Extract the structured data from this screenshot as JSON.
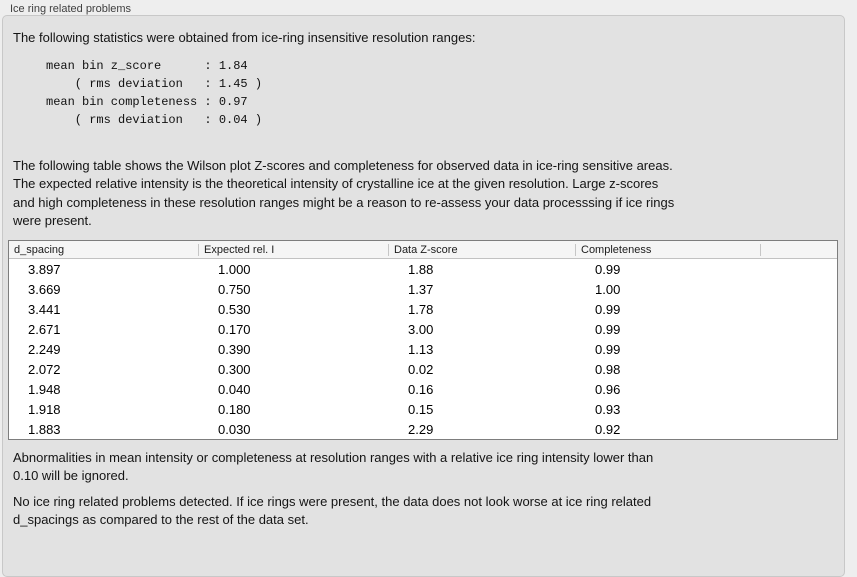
{
  "panel": {
    "title": "Ice ring related problems"
  },
  "intro": "The following statistics were obtained from ice-ring insensitive resolution ranges:",
  "stats_block": "mean bin z_score      : 1.84\n    ( rms deviation   : 1.45 )\nmean bin completeness : 0.97\n    ( rms deviation   : 0.04 )",
  "stats": {
    "mean_bin_z_score": "1.84",
    "z_score_rms_deviation": "1.45",
    "mean_bin_completeness": "0.97",
    "completeness_rms_deviation": "0.04"
  },
  "description": "The following table shows the Wilson plot Z-scores and completeness for observed data in ice-ring sensitive areas.\nThe expected relative intensity is the theoretical intensity of crystalline ice at the given resolution. Large z-scores\nand high completeness in these resolution ranges might be a reason to re-assess your data processsing if ice rings\nwere present.",
  "table": {
    "columns": [
      "d_spacing",
      "Expected rel. I",
      "Data Z-score",
      "Completeness"
    ],
    "rows": [
      [
        "3.897",
        "1.000",
        "1.88",
        "0.99"
      ],
      [
        "3.669",
        "0.750",
        "1.37",
        "1.00"
      ],
      [
        "3.441",
        "0.530",
        "1.78",
        "0.99"
      ],
      [
        "2.671",
        "0.170",
        "3.00",
        "0.99"
      ],
      [
        "2.249",
        "0.390",
        "1.13",
        "0.99"
      ],
      [
        "2.072",
        "0.300",
        "0.02",
        "0.98"
      ],
      [
        "1.948",
        "0.040",
        "0.16",
        "0.96"
      ],
      [
        "1.918",
        "0.180",
        "0.15",
        "0.93"
      ],
      [
        "1.883",
        "0.030",
        "2.29",
        "0.92"
      ]
    ]
  },
  "note": "Abnormalities in mean intensity or completeness at resolution ranges with a relative ice ring intensity lower than\n0.10 will be ignored.",
  "conclusion": "No ice ring related problems detected. If ice rings were present, the data does not look worse at ice ring related\nd_spacings as compared to the rest of the data set."
}
